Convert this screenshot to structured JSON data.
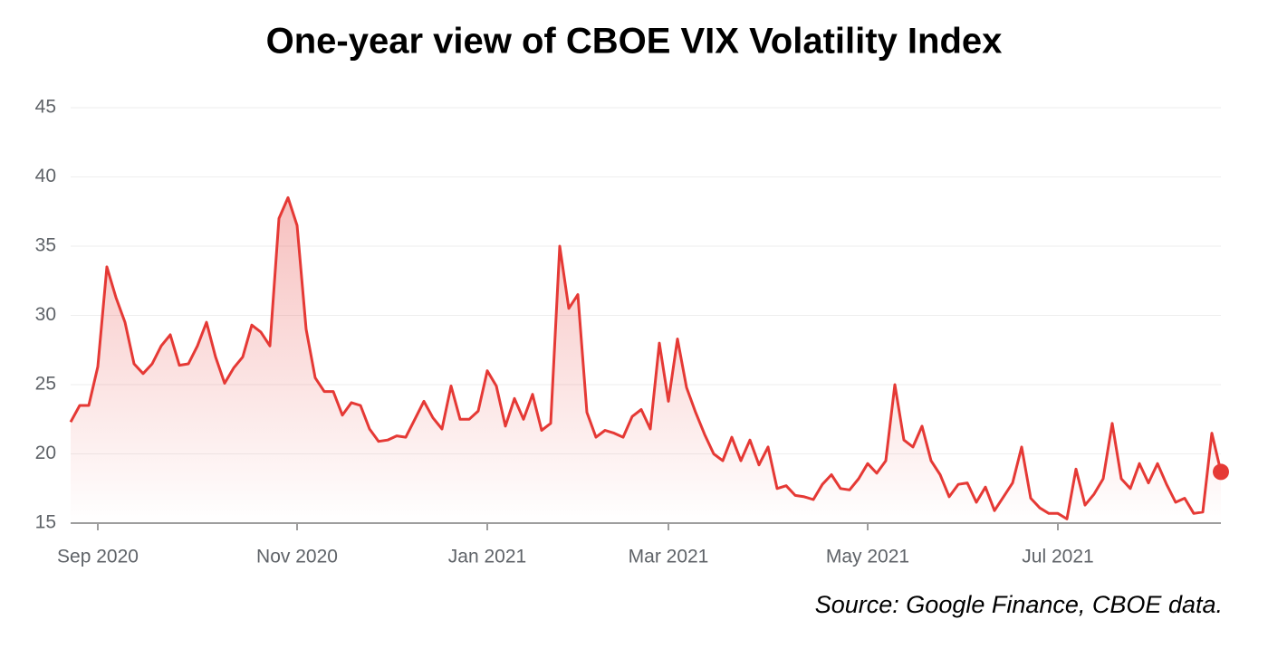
{
  "chart_data": {
    "type": "line",
    "title": "One-year view of CBOE VIX Volatility Index",
    "annotation": "Source: Google Finance, CBOE data.",
    "categories": [
      null,
      null,
      null,
      "Sep 2020",
      null,
      null,
      null,
      null,
      null,
      null,
      null,
      null,
      null,
      null,
      null,
      null,
      null,
      null,
      null,
      null,
      null,
      null,
      null,
      null,
      null,
      "Nov 2020",
      null,
      null,
      null,
      null,
      null,
      null,
      null,
      null,
      null,
      null,
      null,
      null,
      null,
      null,
      null,
      null,
      null,
      null,
      null,
      null,
      "Jan 2021",
      null,
      null,
      null,
      null,
      null,
      null,
      null,
      null,
      null,
      null,
      null,
      null,
      null,
      null,
      null,
      null,
      null,
      null,
      null,
      "Mar 2021",
      null,
      null,
      null,
      null,
      null,
      null,
      null,
      null,
      null,
      null,
      null,
      null,
      null,
      null,
      null,
      null,
      null,
      null,
      null,
      null,
      null,
      "May 2021",
      null,
      null,
      null,
      null,
      null,
      null,
      null,
      null,
      null,
      null,
      null,
      null,
      null,
      null,
      null,
      null,
      null,
      null,
      null,
      null,
      "Jul 2021",
      null,
      null,
      null,
      null,
      null,
      null,
      null,
      null,
      null,
      null,
      null,
      null,
      null,
      null,
      null,
      null,
      null,
      null
    ],
    "values": [
      22.3,
      23.5,
      23.5,
      26.3,
      33.5,
      31.3,
      29.5,
      26.5,
      25.8,
      26.5,
      27.8,
      28.6,
      26.4,
      26.5,
      27.8,
      29.5,
      27,
      25.1,
      26.2,
      27,
      29.3,
      28.8,
      27.8,
      37,
      38.5,
      36.5,
      29,
      25.5,
      24.5,
      24.5,
      22.8,
      23.7,
      23.5,
      21.8,
      20.9,
      21,
      21.3,
      21.2,
      22.5,
      23.8,
      22.6,
      21.8,
      24.9,
      22.5,
      22.5,
      23.1,
      26,
      24.9,
      22,
      24,
      22.5,
      24.3,
      21.7,
      22.2,
      35,
      30.5,
      31.5,
      23,
      21.2,
      21.7,
      21.5,
      21.2,
      22.7,
      23.2,
      21.8,
      28,
      23.8,
      28.3,
      24.8,
      23,
      21.4,
      20,
      19.5,
      21.2,
      19.5,
      21,
      19.2,
      20.5,
      17.5,
      17.7,
      17,
      16.9,
      16.7,
      17.8,
      18.5,
      17.5,
      17.4,
      18.2,
      19.3,
      18.6,
      19.5,
      25,
      21,
      20.5,
      22,
      19.5,
      18.5,
      16.9,
      17.8,
      17.9,
      16.5,
      17.6,
      15.9,
      16.9,
      17.9,
      20.5,
      16.8,
      16.1,
      15.7,
      15.7,
      15.3,
      18.9,
      16.3,
      17.1,
      18.2,
      22.2,
      18.2,
      17.5,
      19.3,
      17.9,
      19.3,
      17.8,
      16.5,
      16.8,
      15.7,
      15.8,
      21.5,
      18.7
    ],
    "color": "#e53935",
    "ylim": [
      15,
      45
    ],
    "yticks": [
      15,
      20,
      25,
      30,
      35,
      40,
      45
    ],
    "grid": true
  }
}
